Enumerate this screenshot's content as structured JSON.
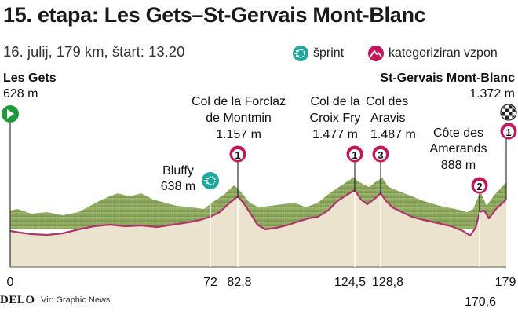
{
  "header": {
    "title": "15. etapa: Les Gets–St-Gervais Mont-Blanc",
    "subtitle": "16. julij, 179 km, štart: 13.20"
  },
  "legend": {
    "sprint_label": "šprint",
    "climb_label": "kategoriziran vzpon",
    "sprint_color": "#1fa79b",
    "climb_color": "#c2185b"
  },
  "start": {
    "name": "Les Gets",
    "elevation": "628 m",
    "km": "0"
  },
  "finish": {
    "name": "St-Gervais Mont-Blanc",
    "elevation": "1.372 m",
    "km": "179",
    "category": "1"
  },
  "points": [
    {
      "id": "bluffy",
      "name": "Bluffy",
      "elevation": "638 m",
      "km": "72",
      "type": "sprint"
    },
    {
      "id": "forclaz",
      "line1": "Col de la Forclaz",
      "line2": "de Montmin",
      "elevation": "1.157 m",
      "km": "82,8",
      "category": "1"
    },
    {
      "id": "croix-fry",
      "line1": "Col de la",
      "line2": "Croix Fry",
      "elevation": "1.477 m",
      "km": "124,5",
      "category": "1"
    },
    {
      "id": "aravis",
      "line1": "Col des",
      "line2": "Aravis",
      "elevation": "1.487 m",
      "km": "128,8",
      "category": "3"
    },
    {
      "id": "amerands",
      "line1": "Côte des",
      "line2": "Amerands",
      "elevation": "888 m",
      "km": "170,6",
      "category": "2"
    }
  ],
  "colors": {
    "profile_fill": "#ece3cf",
    "relief": "#9bb56a",
    "relief_dark": "#6f8a45",
    "route_line": "#b0336a"
  },
  "footer": {
    "logo": "DELO",
    "source": "Vir: Graphic News"
  }
}
